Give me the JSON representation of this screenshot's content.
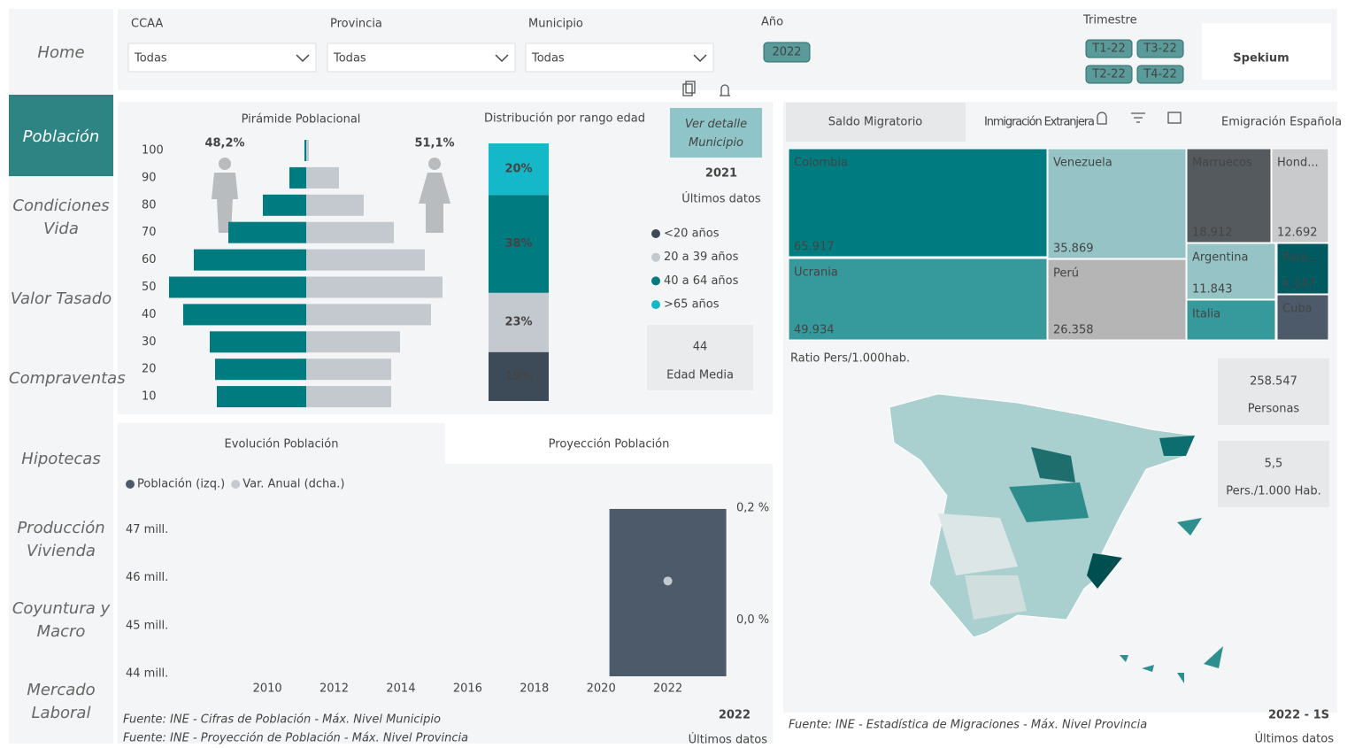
{
  "nav": {
    "items": [
      "Home",
      "Población",
      "Condiciones Vida",
      "Valor Tasado",
      "Compraventas",
      "Hipotecas",
      "Producción Vivienda",
      "Coyuntura y Macro",
      "Mercado Laboral"
    ],
    "active": 1
  },
  "filters": [
    {
      "label": "CCAA",
      "value": "Todas"
    },
    {
      "label": "Provincia",
      "value": "Todas"
    },
    {
      "label": "Municipio",
      "value": "Todas"
    }
  ],
  "year_filter": {
    "label": "Año",
    "options": [
      "2022"
    ]
  },
  "quarter_filter": {
    "label": "Trimestre",
    "options": [
      "T1-22",
      "T3-22",
      "T2-22",
      "T4-22"
    ]
  },
  "logo": "Spekium",
  "pyramid": {
    "type": "bar",
    "title": "Pirámide Poblacional",
    "categories": [
      100,
      90,
      80,
      70,
      60,
      50,
      40,
      30,
      20,
      10
    ],
    "series": [
      {
        "share_label": "48,2%",
        "color": "#007b80",
        "values": [
          2,
          19,
          49,
          88,
          127,
          155,
          139,
          109,
          103,
          101
        ]
      },
      {
        "share_label": "51,1%",
        "color": "#c4c9d0",
        "values": [
          3,
          37,
          65,
          99,
          134,
          154,
          141,
          106,
          96,
          96
        ]
      }
    ]
  },
  "distribution": {
    "type": "stacked_bar",
    "title": "Distribución por rango edad",
    "series": [
      {
        "name": "<20 años",
        "color": "#3d4a57",
        "values": [
          19
        ],
        "value_labels": [
          "19%"
        ]
      },
      {
        "name": "20 a 39 años",
        "color": "#c4c9d0",
        "values": [
          23
        ],
        "value_labels": [
          "23%"
        ]
      },
      {
        "name": "40 a 64 años",
        "color": "#007b80",
        "values": [
          38
        ],
        "value_labels": [
          "38%"
        ]
      },
      {
        "name": ">65 años",
        "color": "#14b8c8",
        "values": [
          20
        ],
        "value_labels": [
          "20%"
        ]
      }
    ],
    "detail_button": "Ver detalle Municipio",
    "year": "2021",
    "year_note": "Últimos datos",
    "kpi": {
      "value": 44,
      "label": "Edad Media"
    }
  },
  "migration": {
    "tabs": [
      "Saldo Migratorio",
      "Inmigración Extranjera",
      "Emigración Española"
    ],
    "active_tab": 0,
    "treemap": {
      "type": "treemap",
      "categories": [
        "Colombia",
        "Venezuela",
        "Marruecos",
        "Hond...",
        "Ucrania",
        "Perú",
        "Argentina",
        "Para...",
        "Italia",
        "Cuba"
      ],
      "values": [
        65917,
        35869,
        18912,
        12692,
        49934,
        26358,
        11843,
        6147,
        8000,
        4300
      ],
      "value_labels": [
        "65.917",
        "35.869",
        "18.912",
        "12.692",
        "49.934",
        "26.358",
        "11.843",
        "6.147",
        null,
        null
      ],
      "colors": [
        "#007b80",
        "#96c4c6",
        "#555a5f",
        "#c8cacc",
        "#36999c",
        "#b5b5b5",
        "#96c4c6",
        "#005a60",
        "#36999c",
        "#4d5a6a"
      ]
    },
    "map_title": "Ratio Pers/1.000hab.",
    "kpis": [
      {
        "value": "258.547",
        "label": "Personas"
      },
      {
        "value": "5,5",
        "label": "Pers./1.000 Hab."
      }
    ],
    "source": "Fuente: INE - Estadística de Migraciones - Máx. Nivel Provincia",
    "period": "2022 - 1S",
    "period_note": "Últimos datos"
  },
  "evolution": {
    "tabs": [
      "Evolución Población",
      "Proyección Población"
    ],
    "active_tab": 0,
    "chart": {
      "type": "combo",
      "x": [
        2022
      ],
      "series": [
        {
          "name": "Población (izq.)",
          "type": "bar",
          "color": "#4d5a6a",
          "values": [
            47432805
          ]
        },
        {
          "name": "Var. Anual (dcha.)",
          "type": "line",
          "axis": "y2",
          "color": "#c4c9d0",
          "values": [
            0.07
          ]
        }
      ],
      "xlim": [
        2005.7,
        2024
      ],
      "xticks": [
        2010,
        2012,
        2014,
        2016,
        2018,
        2020,
        2022
      ],
      "ylim": [
        43945000,
        47450000
      ],
      "yticks": [
        {
          "value": 44000000,
          "label": "44 mill."
        },
        {
          "value": 45000000,
          "label": "45 mill."
        },
        {
          "value": 46000000,
          "label": "46 mill."
        },
        {
          "value": 47000000,
          "label": "47 mill."
        }
      ],
      "y2lim": [
        -0.1,
        0.2
      ],
      "y2ticks": [
        {
          "value": 0,
          "label": "0,0 %"
        },
        {
          "value": 0.2,
          "label": "0,2 %"
        }
      ]
    },
    "sources": [
      "Fuente: INE - Cifras de Población - Máx. Nivel Municipio",
      "Fuente: INE - Proyección de Población - Máx. Nivel Provincia"
    ],
    "year": "2022",
    "year_note": "Últimos datos"
  }
}
